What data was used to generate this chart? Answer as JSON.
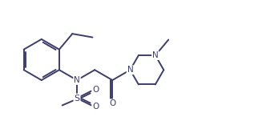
{
  "bg_color": "#ffffff",
  "line_color": "#3d3d6b",
  "line_width": 1.4,
  "font_size": 7.5,
  "fig_width": 3.17,
  "fig_height": 1.61,
  "dpi": 100,
  "xlim": [
    0.0,
    10.5
  ],
  "ylim": [
    0.5,
    5.5
  ]
}
